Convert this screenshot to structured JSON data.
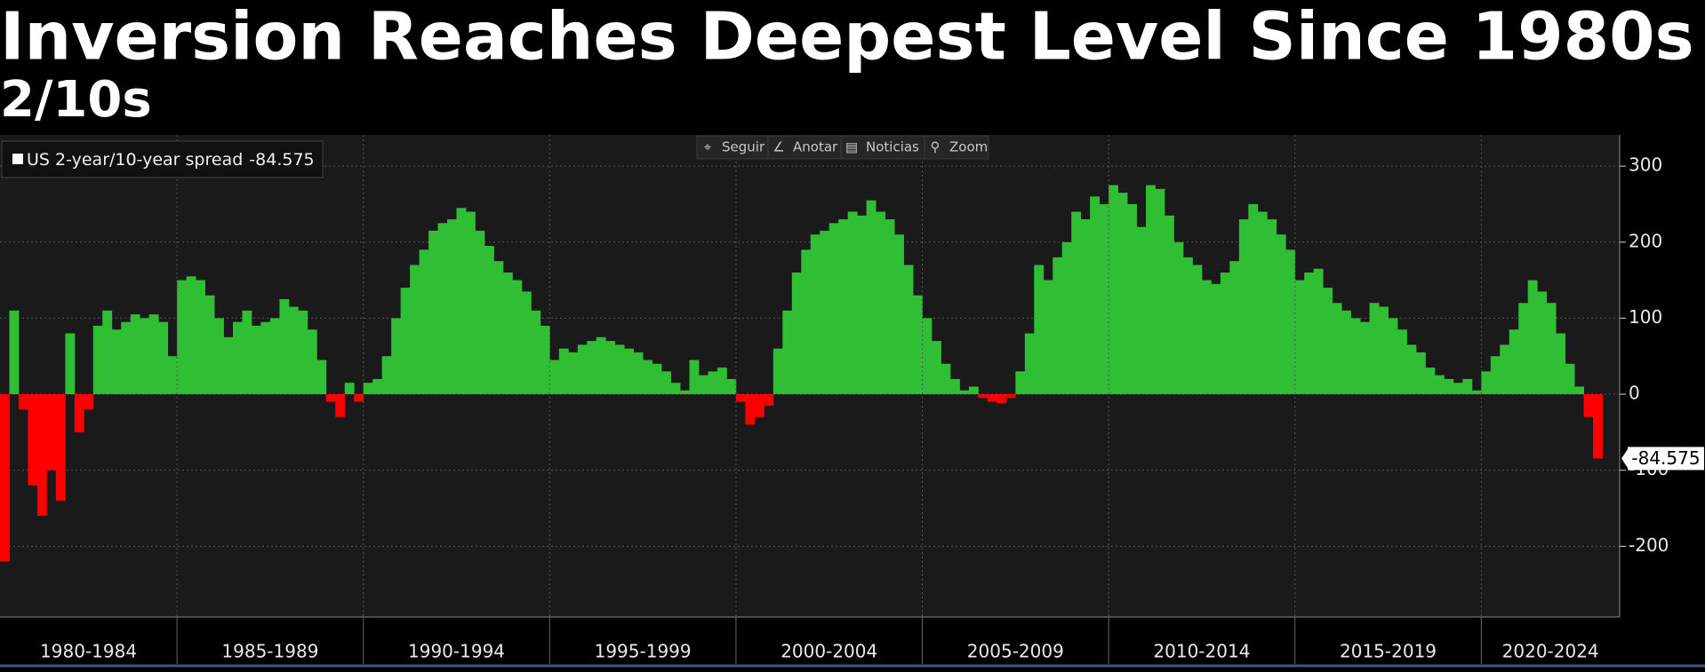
{
  "chart_data": {
    "type": "area",
    "title": "Inversion Reaches Deepest Level Since 1980s",
    "subtitle": "2/10s",
    "toolbar": [
      "Seguir",
      "Anotar",
      "Noticias",
      "Zoom"
    ],
    "categories": [
      "1980-1984",
      "1985-1989",
      "1990-1994",
      "1995-1999",
      "2000-2004",
      "2005-2009",
      "2010-2014",
      "2015-2019",
      "2020-2024"
    ],
    "series": [
      {
        "name": "US 2-year/10-year spread",
        "color": "#2fbe34",
        "negative_color": "#ff0000",
        "values": [
          [
            -220,
            110,
            -20,
            -120,
            -160,
            -100,
            -140,
            80,
            -50,
            -20,
            90,
            110,
            85,
            95,
            105,
            100,
            105,
            95,
            50
          ],
          [
            150,
            155,
            150,
            130,
            100,
            75,
            95,
            110,
            90,
            95,
            100,
            125,
            115,
            110,
            85,
            45,
            -10,
            -30,
            15,
            -10
          ],
          [
            15,
            20,
            50,
            100,
            140,
            170,
            190,
            215,
            225,
            230,
            245,
            240,
            215,
            195,
            175,
            160,
            150,
            135,
            110,
            90
          ],
          [
            45,
            60,
            55,
            65,
            70,
            75,
            70,
            65,
            60,
            55,
            45,
            40,
            30,
            15,
            5,
            45,
            25,
            30,
            35,
            20
          ],
          [
            -10,
            -40,
            -30,
            -15,
            60,
            110,
            160,
            190,
            210,
            215,
            225,
            230,
            240,
            235,
            255,
            240,
            230,
            210,
            170,
            130
          ],
          [
            100,
            70,
            40,
            20,
            5,
            10,
            -5,
            -10,
            -12,
            -5,
            30,
            80,
            170,
            150,
            180,
            200,
            240,
            230,
            260,
            250
          ],
          [
            275,
            265,
            250,
            220,
            275,
            270,
            235,
            200,
            180,
            170,
            150,
            145,
            160,
            175,
            230,
            250,
            240,
            230,
            210,
            190
          ],
          [
            150,
            160,
            165,
            140,
            120,
            110,
            100,
            95,
            120,
            115,
            100,
            85,
            65,
            55,
            35,
            25,
            20,
            15,
            20,
            5
          ],
          [
            30,
            50,
            65,
            85,
            120,
            150,
            135,
            120,
            80,
            40,
            10,
            -30,
            -84.575
          ]
        ]
      }
    ],
    "ylim": [
      -293,
      341
    ],
    "yticks": [
      300,
      200,
      100,
      0,
      -100,
      -200
    ],
    "grid": true
  }
}
